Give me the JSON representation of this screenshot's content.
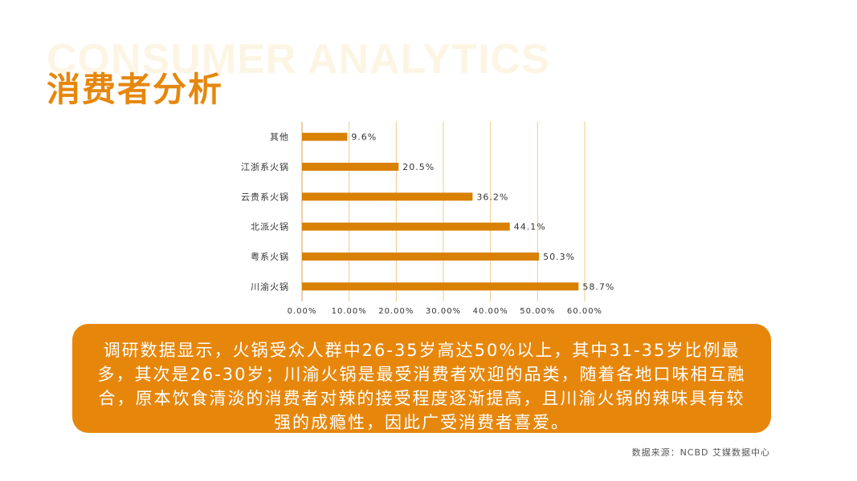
{
  "header": {
    "bg_text": "CONSUMER ANALYTICS",
    "title": "消费者分析"
  },
  "colors": {
    "accent": "#e6870c",
    "bar": "#d98104",
    "grid": "#f0c98a"
  },
  "chart_data": {
    "type": "bar",
    "orientation": "horizontal",
    "categories": [
      "其他",
      "江浙系火锅",
      "云贵系火锅",
      "北派火锅",
      "粤系火锅",
      "川渝火锅"
    ],
    "values": [
      9.6,
      20.5,
      36.2,
      44.1,
      50.3,
      58.7
    ],
    "value_labels": [
      "9.6%",
      "20.5%",
      "36.2%",
      "44.1%",
      "50.3%",
      "58.7%"
    ],
    "xlim": [
      0,
      60
    ],
    "xticks": [
      0,
      10,
      20,
      30,
      40,
      50,
      60
    ],
    "xtick_labels": [
      "0.00%",
      "10.00%",
      "20.00%",
      "30.00%",
      "40.00%",
      "50.00%",
      "60.00%"
    ],
    "grid": true
  },
  "summary": {
    "text": "调研数据显示，火锅受众人群中26-35岁高达50%以上，其中31-35岁比例最多，其次是26-30岁；川渝火锅是最受消费者欢迎的品类，随着各地口味相互融合，原本饮食清淡的消费者对辣的接受程度逐渐提高，且川渝火锅的辣味具有较强的成瘾性，因此广受消费者喜爱。"
  },
  "source": {
    "text": "数据来源：NCBD 艾媒数据中心"
  }
}
